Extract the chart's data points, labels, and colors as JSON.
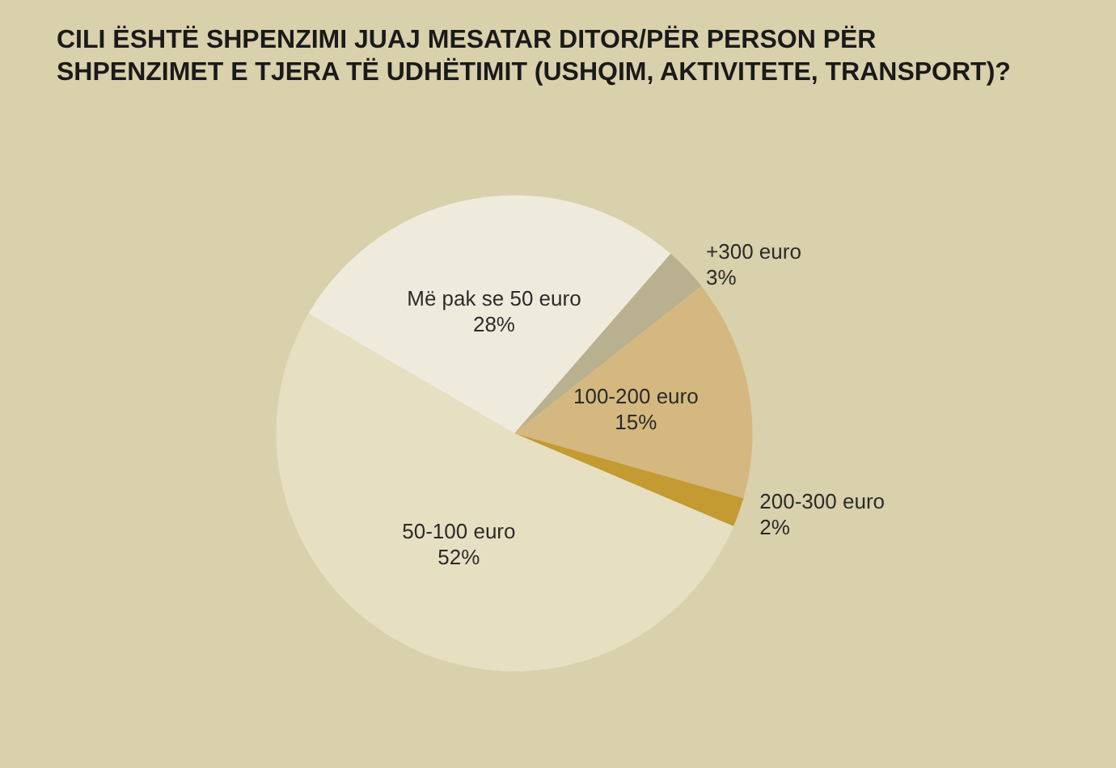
{
  "chart_data": {
    "type": "pie",
    "title": "CILI ËSHTË SHPENZIMI JUAJ MESATAR DITOR/PËR PERSON PËR SHPENZIMET E TJERA TË UDHËTIMIT (USHQIM, AKTIVITETE, TRANSPORT)?",
    "categories": [
      "+300 euro",
      "100-200 euro",
      "200-300 euro",
      "50-100 euro",
      "Më pak se 50 euro"
    ],
    "values": [
      3,
      15,
      2,
      52,
      28
    ],
    "colors": [
      "#b8b08f",
      "#d4b87f",
      "#c49a32",
      "#e6dfc1",
      "#efebdc"
    ],
    "value_labels": [
      "3%",
      "15%",
      "2%",
      "52%",
      "28%"
    ],
    "legend": false
  }
}
